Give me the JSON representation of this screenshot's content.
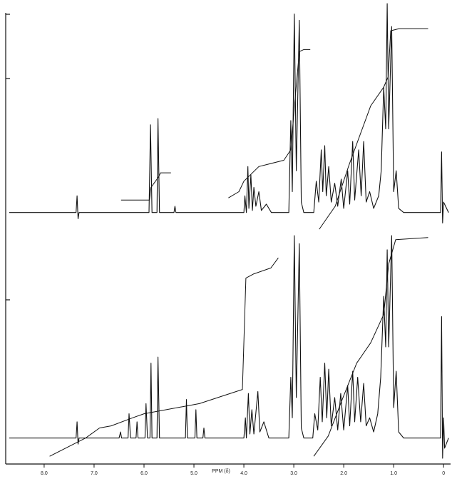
{
  "chart_data": [
    {
      "type": "line",
      "xlim": [
        8.77,
        -0.14
      ],
      "ylim": [
        -10,
        100
      ],
      "series": [
        {
          "color": "#111111",
          "x": [
            8.7,
            7.36,
            7.34,
            7.32,
            7.3,
            5.9,
            5.87,
            5.84,
            5.74,
            5.72,
            5.69,
            5.4,
            5.38,
            5.36,
            4.0,
            3.98,
            3.95,
            3.92,
            3.9,
            3.86,
            3.83,
            3.8,
            3.76,
            3.7,
            3.65,
            3.55,
            3.45,
            3.1,
            3.06,
            3.03,
            2.99,
            2.95,
            2.89,
            2.85,
            2.8,
            2.6,
            2.55,
            2.5,
            2.45,
            2.42,
            2.38,
            2.35,
            2.3,
            2.25,
            2.18,
            2.12,
            2.05,
            2.0,
            1.92,
            1.88,
            1.82,
            1.78,
            1.7,
            1.65,
            1.6,
            1.55,
            1.48,
            1.4,
            1.3,
            1.25,
            1.2,
            1.16,
            1.13,
            1.1,
            1.04,
            1.0,
            0.95,
            0.9,
            0.8,
            0.06,
            0.04,
            0.02,
            0.0,
            -0.1
          ],
          "values": [
            0,
            0,
            8,
            -3,
            0,
            0,
            42,
            0,
            0,
            45,
            0,
            0,
            3,
            0,
            0,
            8,
            0,
            22,
            2,
            18,
            1,
            12,
            3,
            10,
            1,
            4,
            0,
            0,
            44,
            10,
            95,
            20,
            92,
            5,
            0,
            0,
            15,
            5,
            30,
            10,
            32,
            8,
            22,
            5,
            14,
            3,
            16,
            2,
            20,
            4,
            34,
            6,
            30,
            8,
            34,
            5,
            10,
            2,
            8,
            20,
            60,
            40,
            100,
            40,
            89,
            10,
            20,
            2,
            0,
            0,
            29,
            -5,
            5,
            0
          ]
        },
        {
          "color": "#111111",
          "x": [
            6.46,
            5.89,
            5.86,
            5.71,
            5.67,
            5.46,
            null,
            4.31,
            4.1,
            4.0,
            3.7,
            3.2,
            3.06,
            2.99,
            2.89,
            2.8,
            2.67,
            null,
            2.49,
            2.17,
            1.89,
            1.46,
            1.2,
            1.11,
            1.06,
            0.89,
            0.31
          ],
          "values": [
            6,
            6,
            12,
            17,
            19,
            19,
            null,
            7,
            10,
            15,
            22,
            25,
            30,
            50,
            77,
            78,
            78,
            null,
            -8,
            3,
            23,
            51,
            60,
            65,
            87,
            88,
            88
          ]
        }
      ]
    },
    {
      "type": "line",
      "xlim": [
        8.77,
        -0.14
      ],
      "ylim": [
        -10,
        100
      ],
      "xlabel": "PPM (δ)",
      "xticks": [
        {
          "value": 8,
          "label": "8.0"
        },
        {
          "value": 7,
          "label": "7.0"
        },
        {
          "value": 6,
          "label": "6.0"
        },
        {
          "value": 5,
          "label": "5.0"
        },
        {
          "value": 4,
          "label": "4.0"
        },
        {
          "value": 3,
          "label": "3.0"
        },
        {
          "value": 2,
          "label": "2.0"
        },
        {
          "value": 1,
          "label": "1.0"
        },
        0
      ],
      "series": [
        {
          "color": "#111111",
          "x": [
            8.7,
            7.36,
            7.34,
            7.32,
            7.3,
            6.5,
            6.47,
            6.45,
            6.32,
            6.3,
            6.27,
            6.16,
            6.14,
            6.12,
            5.98,
            5.96,
            5.93,
            5.88,
            5.86,
            5.84,
            5.74,
            5.72,
            5.69,
            5.17,
            5.15,
            5.13,
            4.98,
            4.96,
            4.94,
            4.82,
            4.8,
            4.78,
            4.0,
            3.97,
            3.95,
            3.91,
            3.88,
            3.84,
            3.8,
            3.72,
            3.68,
            3.6,
            3.5,
            3.1,
            3.06,
            3.03,
            2.99,
            2.95,
            2.89,
            2.85,
            2.8,
            2.62,
            2.58,
            2.52,
            2.47,
            2.43,
            2.38,
            2.34,
            2.3,
            2.25,
            2.18,
            2.12,
            2.06,
            2.0,
            1.92,
            1.88,
            1.82,
            1.78,
            1.72,
            1.66,
            1.6,
            1.55,
            1.48,
            1.4,
            1.32,
            1.26,
            1.2,
            1.16,
            1.13,
            1.1,
            1.04,
            1.0,
            0.95,
            0.9,
            0.8,
            0.06,
            0.04,
            0.02,
            0.0,
            -0.02,
            -0.1
          ],
          "values": [
            0,
            0,
            8,
            -3,
            0,
            0,
            3,
            0,
            0,
            12,
            0,
            0,
            8,
            0,
            0,
            17,
            0,
            0,
            37,
            0,
            0,
            40,
            0,
            0,
            19,
            0,
            0,
            14,
            0,
            0,
            5,
            0,
            0,
            10,
            0,
            22,
            2,
            14,
            2,
            23,
            3,
            8,
            0,
            0,
            30,
            10,
            100,
            20,
            96,
            5,
            0,
            0,
            12,
            4,
            30,
            8,
            37,
            10,
            34,
            6,
            20,
            4,
            22,
            4,
            26,
            6,
            33,
            8,
            30,
            8,
            27,
            6,
            10,
            3,
            12,
            30,
            70,
            45,
            93,
            45,
            100,
            15,
            33,
            3,
            0,
            0,
            60,
            -10,
            10,
            -5,
            0
          ]
        },
        {
          "color": "#111111",
          "x": [
            7.89,
            7.17,
            6.89,
            6.66,
            6.23,
            6.0,
            4.89,
            4.4,
            4.03,
            3.96,
            3.81,
            3.46,
            3.31,
            null,
            2.6,
            2.31,
            2.03,
            1.74,
            1.46,
            1.2,
            1.1,
            0.96,
            0.31
          ],
          "values": [
            -9,
            0,
            5,
            6,
            10,
            12,
            17,
            21,
            24,
            79,
            81,
            84,
            89,
            null,
            -9,
            1,
            19,
            37,
            47,
            61,
            86,
            98,
            99
          ]
        }
      ]
    }
  ]
}
